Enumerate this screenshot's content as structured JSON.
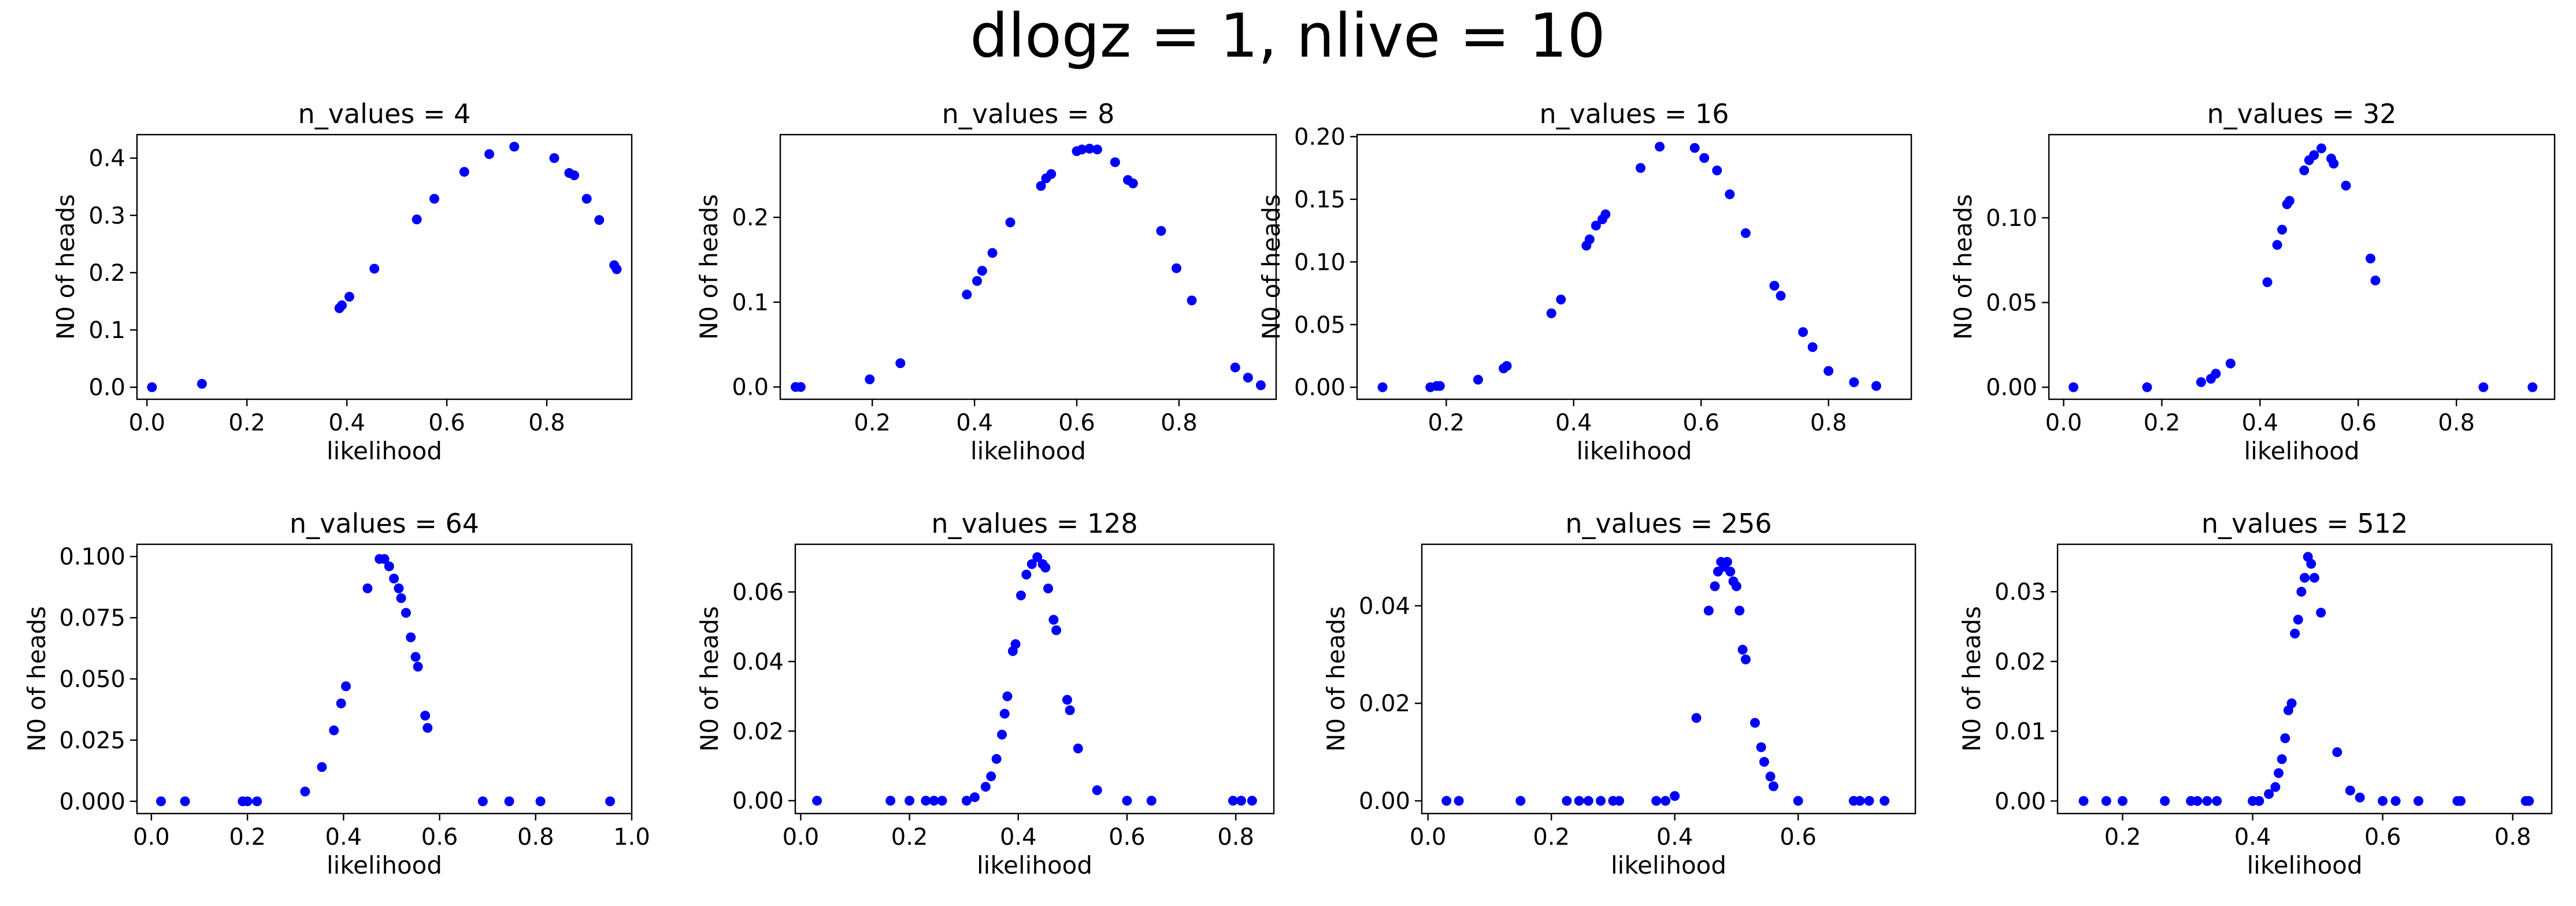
{
  "suptitle": "dlogz = 1, nlive = 10",
  "chart_data": [
    {
      "type": "scatter",
      "title": "n_values =  4",
      "xlabel": "likelihood",
      "ylabel": "N0 of heads",
      "xlim": [
        -0.02,
        0.97
      ],
      "ylim": [
        -0.021,
        0.441
      ],
      "xticks": [
        0.0,
        0.2,
        0.4,
        0.6,
        0.8
      ],
      "xtick_labels": [
        "0.0",
        "0.2",
        "0.4",
        "0.6",
        "0.8"
      ],
      "yticks": [
        0.0,
        0.1,
        0.2,
        0.3,
        0.4
      ],
      "ytick_labels": [
        "0.0",
        "0.1",
        "0.2",
        "0.3",
        "0.4"
      ],
      "marker_color": "#0000ff",
      "points": [
        [
          0.01,
          0.0
        ],
        [
          0.11,
          0.006
        ],
        [
          0.385,
          0.138
        ],
        [
          0.39,
          0.143
        ],
        [
          0.405,
          0.158
        ],
        [
          0.455,
          0.207
        ],
        [
          0.54,
          0.293
        ],
        [
          0.575,
          0.329
        ],
        [
          0.635,
          0.376
        ],
        [
          0.685,
          0.407
        ],
        [
          0.735,
          0.42
        ],
        [
          0.815,
          0.4
        ],
        [
          0.845,
          0.374
        ],
        [
          0.855,
          0.37
        ],
        [
          0.88,
          0.329
        ],
        [
          0.905,
          0.292
        ],
        [
          0.935,
          0.213
        ],
        [
          0.94,
          0.206
        ]
      ]
    },
    {
      "type": "scatter",
      "title": "n_values =  8",
      "xlabel": "likelihood",
      "ylabel": "N0 of heads",
      "xlim": [
        0.02,
        0.99
      ],
      "ylim": [
        -0.0145,
        0.2975
      ],
      "xticks": [
        0.2,
        0.4,
        0.6,
        0.8
      ],
      "xtick_labels": [
        "0.2",
        "0.4",
        "0.6",
        "0.8"
      ],
      "yticks": [
        0.0,
        0.1,
        0.2
      ],
      "ytick_labels": [
        "0.0",
        "0.1",
        "0.2"
      ],
      "marker_color": "#0000ff",
      "points": [
        [
          0.05,
          0.0
        ],
        [
          0.06,
          0.0
        ],
        [
          0.195,
          0.009
        ],
        [
          0.255,
          0.028
        ],
        [
          0.385,
          0.109
        ],
        [
          0.405,
          0.125
        ],
        [
          0.415,
          0.137
        ],
        [
          0.435,
          0.158
        ],
        [
          0.47,
          0.194
        ],
        [
          0.53,
          0.237
        ],
        [
          0.54,
          0.246
        ],
        [
          0.55,
          0.251
        ],
        [
          0.6,
          0.278
        ],
        [
          0.61,
          0.28
        ],
        [
          0.625,
          0.281
        ],
        [
          0.64,
          0.28
        ],
        [
          0.675,
          0.265
        ],
        [
          0.7,
          0.244
        ],
        [
          0.71,
          0.24
        ],
        [
          0.765,
          0.184
        ],
        [
          0.795,
          0.14
        ],
        [
          0.825,
          0.102
        ],
        [
          0.91,
          0.023
        ],
        [
          0.935,
          0.011
        ],
        [
          0.96,
          0.002
        ]
      ]
    },
    {
      "type": "scatter",
      "title": "n_values =  16",
      "xlabel": "likelihood",
      "ylabel": "N0 of heads",
      "xlim": [
        0.06,
        0.93
      ],
      "ylim": [
        -0.0096,
        0.2016
      ],
      "xticks": [
        0.2,
        0.4,
        0.6,
        0.8
      ],
      "xtick_labels": [
        "0.2",
        "0.4",
        "0.6",
        "0.8"
      ],
      "yticks": [
        0.0,
        0.05,
        0.1,
        0.15,
        0.2
      ],
      "ytick_labels": [
        "0.00",
        "0.05",
        "0.10",
        "0.15",
        "0.20"
      ],
      "marker_color": "#0000ff",
      "points": [
        [
          0.1,
          0.0
        ],
        [
          0.175,
          0.0
        ],
        [
          0.185,
          0.001
        ],
        [
          0.19,
          0.001
        ],
        [
          0.25,
          0.006
        ],
        [
          0.29,
          0.015
        ],
        [
          0.295,
          0.017
        ],
        [
          0.365,
          0.059
        ],
        [
          0.38,
          0.07
        ],
        [
          0.42,
          0.113
        ],
        [
          0.425,
          0.118
        ],
        [
          0.435,
          0.129
        ],
        [
          0.445,
          0.134
        ],
        [
          0.45,
          0.138
        ],
        [
          0.505,
          0.175
        ],
        [
          0.535,
          0.192
        ],
        [
          0.59,
          0.191
        ],
        [
          0.605,
          0.183
        ],
        [
          0.625,
          0.173
        ],
        [
          0.645,
          0.154
        ],
        [
          0.67,
          0.123
        ],
        [
          0.715,
          0.081
        ],
        [
          0.725,
          0.073
        ],
        [
          0.76,
          0.044
        ],
        [
          0.775,
          0.032
        ],
        [
          0.8,
          0.013
        ],
        [
          0.84,
          0.004
        ],
        [
          0.875,
          0.001
        ]
      ]
    },
    {
      "type": "scatter",
      "title": "n_values =  32",
      "xlabel": "likelihood",
      "ylabel": "N0 of heads",
      "xlim": [
        -0.03,
        1.0
      ],
      "ylim": [
        -0.0071,
        0.1491
      ],
      "xticks": [
        0.0,
        0.2,
        0.4,
        0.6,
        0.8
      ],
      "xtick_labels": [
        "0.0",
        "0.2",
        "0.4",
        "0.6",
        "0.8"
      ],
      "yticks": [
        0.0,
        0.05,
        0.1
      ],
      "ytick_labels": [
        "0.00",
        "0.05",
        "0.10"
      ],
      "marker_color": "#0000ff",
      "points": [
        [
          0.02,
          0.0
        ],
        [
          0.17,
          0.0
        ],
        [
          0.28,
          0.003
        ],
        [
          0.3,
          0.005
        ],
        [
          0.31,
          0.008
        ],
        [
          0.34,
          0.014
        ],
        [
          0.415,
          0.062
        ],
        [
          0.435,
          0.084
        ],
        [
          0.445,
          0.093
        ],
        [
          0.455,
          0.108
        ],
        [
          0.46,
          0.11
        ],
        [
          0.49,
          0.128
        ],
        [
          0.5,
          0.134
        ],
        [
          0.51,
          0.137
        ],
        [
          0.525,
          0.141
        ],
        [
          0.545,
          0.135
        ],
        [
          0.55,
          0.132
        ],
        [
          0.575,
          0.119
        ],
        [
          0.625,
          0.076
        ],
        [
          0.635,
          0.063
        ],
        [
          0.855,
          0.0
        ],
        [
          0.955,
          0.0
        ]
      ]
    },
    {
      "type": "scatter",
      "title": "n_values =  64",
      "xlabel": "likelihood",
      "ylabel": "N0 of heads",
      "xlim": [
        -0.03,
        1.0
      ],
      "ylim": [
        -0.005,
        0.105
      ],
      "xticks": [
        0.0,
        0.2,
        0.4,
        0.6,
        0.8,
        1.0
      ],
      "xtick_labels": [
        "0.0",
        "0.2",
        "0.4",
        "0.6",
        "0.8",
        "1.0"
      ],
      "yticks": [
        0.0,
        0.025,
        0.05,
        0.075,
        0.1
      ],
      "ytick_labels": [
        "0.000",
        "0.025",
        "0.050",
        "0.075",
        "0.100"
      ],
      "marker_color": "#0000ff",
      "points": [
        [
          0.02,
          0.0
        ],
        [
          0.07,
          0.0
        ],
        [
          0.19,
          0.0
        ],
        [
          0.2,
          0.0
        ],
        [
          0.22,
          0.0
        ],
        [
          0.32,
          0.004
        ],
        [
          0.355,
          0.014
        ],
        [
          0.38,
          0.029
        ],
        [
          0.395,
          0.04
        ],
        [
          0.405,
          0.047
        ],
        [
          0.45,
          0.087
        ],
        [
          0.475,
          0.099
        ],
        [
          0.485,
          0.099
        ],
        [
          0.495,
          0.096
        ],
        [
          0.505,
          0.091
        ],
        [
          0.515,
          0.087
        ],
        [
          0.52,
          0.083
        ],
        [
          0.53,
          0.077
        ],
        [
          0.54,
          0.067
        ],
        [
          0.55,
          0.059
        ],
        [
          0.555,
          0.055
        ],
        [
          0.57,
          0.035
        ],
        [
          0.575,
          0.03
        ],
        [
          0.69,
          0.0
        ],
        [
          0.745,
          0.0
        ],
        [
          0.81,
          0.0
        ],
        [
          0.955,
          0.0
        ]
      ]
    },
    {
      "type": "scatter",
      "title": "n_values =  128",
      "xlabel": "likelihood",
      "ylabel": "N0 of heads",
      "xlim": [
        -0.01,
        0.87
      ],
      "ylim": [
        -0.0037,
        0.0737
      ],
      "xticks": [
        0.0,
        0.2,
        0.4,
        0.6,
        0.8
      ],
      "xtick_labels": [
        "0.0",
        "0.2",
        "0.4",
        "0.6",
        "0.8"
      ],
      "yticks": [
        0.0,
        0.02,
        0.04,
        0.06
      ],
      "ytick_labels": [
        "0.00",
        "0.02",
        "0.04",
        "0.06"
      ],
      "marker_color": "#0000ff",
      "points": [
        [
          0.03,
          0.0
        ],
        [
          0.165,
          0.0
        ],
        [
          0.2,
          0.0
        ],
        [
          0.23,
          0.0
        ],
        [
          0.245,
          0.0
        ],
        [
          0.26,
          0.0
        ],
        [
          0.305,
          0.0
        ],
        [
          0.32,
          0.001
        ],
        [
          0.34,
          0.004
        ],
        [
          0.35,
          0.007
        ],
        [
          0.36,
          0.012
        ],
        [
          0.37,
          0.019
        ],
        [
          0.375,
          0.025
        ],
        [
          0.38,
          0.03
        ],
        [
          0.39,
          0.043
        ],
        [
          0.395,
          0.045
        ],
        [
          0.405,
          0.059
        ],
        [
          0.415,
          0.065
        ],
        [
          0.425,
          0.068
        ],
        [
          0.435,
          0.07
        ],
        [
          0.445,
          0.068
        ],
        [
          0.45,
          0.067
        ],
        [
          0.455,
          0.061
        ],
        [
          0.465,
          0.052
        ],
        [
          0.47,
          0.049
        ],
        [
          0.49,
          0.029
        ],
        [
          0.495,
          0.026
        ],
        [
          0.51,
          0.015
        ],
        [
          0.545,
          0.003
        ],
        [
          0.6,
          0.0
        ],
        [
          0.645,
          0.0
        ],
        [
          0.795,
          0.0
        ],
        [
          0.81,
          0.0
        ],
        [
          0.83,
          0.0
        ]
      ]
    },
    {
      "type": "scatter",
      "title": "n_values =  256",
      "xlabel": "likelihood",
      "ylabel": "N0 of heads",
      "xlim": [
        -0.01,
        0.79
      ],
      "ylim": [
        -0.0026,
        0.0526
      ],
      "xticks": [
        0.0,
        0.2,
        0.4,
        0.6
      ],
      "xtick_labels": [
        "0.0",
        "0.2",
        "0.4",
        "0.6"
      ],
      "yticks": [
        0.0,
        0.02,
        0.04
      ],
      "ytick_labels": [
        "0.00",
        "0.02",
        "0.04"
      ],
      "marker_color": "#0000ff",
      "points": [
        [
          0.03,
          0.0
        ],
        [
          0.05,
          0.0
        ],
        [
          0.15,
          0.0
        ],
        [
          0.225,
          0.0
        ],
        [
          0.245,
          0.0
        ],
        [
          0.26,
          0.0
        ],
        [
          0.28,
          0.0
        ],
        [
          0.3,
          0.0
        ],
        [
          0.31,
          0.0
        ],
        [
          0.37,
          0.0
        ],
        [
          0.385,
          0.0
        ],
        [
          0.4,
          0.001
        ],
        [
          0.435,
          0.017
        ],
        [
          0.455,
          0.039
        ],
        [
          0.465,
          0.044
        ],
        [
          0.47,
          0.047
        ],
        [
          0.475,
          0.049
        ],
        [
          0.48,
          0.048
        ],
        [
          0.485,
          0.049
        ],
        [
          0.49,
          0.047
        ],
        [
          0.495,
          0.045
        ],
        [
          0.5,
          0.044
        ],
        [
          0.505,
          0.039
        ],
        [
          0.51,
          0.031
        ],
        [
          0.515,
          0.029
        ],
        [
          0.53,
          0.016
        ],
        [
          0.54,
          0.011
        ],
        [
          0.545,
          0.008
        ],
        [
          0.555,
          0.005
        ],
        [
          0.56,
          0.003
        ],
        [
          0.6,
          0.0
        ],
        [
          0.69,
          0.0
        ],
        [
          0.7,
          0.0
        ],
        [
          0.715,
          0.0
        ],
        [
          0.74,
          0.0
        ]
      ]
    },
    {
      "type": "scatter",
      "title": "n_values =  512",
      "xlabel": "likelihood",
      "ylabel": "N0 of heads",
      "xlim": [
        0.1,
        0.86
      ],
      "ylim": [
        -0.0018,
        0.0368
      ],
      "xticks": [
        0.2,
        0.4,
        0.6,
        0.8
      ],
      "xtick_labels": [
        "0.2",
        "0.4",
        "0.6",
        "0.8"
      ],
      "yticks": [
        0.0,
        0.01,
        0.02,
        0.03
      ],
      "ytick_labels": [
        "0.00",
        "0.01",
        "0.02",
        "0.03"
      ],
      "marker_color": "#0000ff",
      "points": [
        [
          0.14,
          0.0
        ],
        [
          0.175,
          0.0
        ],
        [
          0.2,
          0.0
        ],
        [
          0.265,
          0.0
        ],
        [
          0.305,
          0.0
        ],
        [
          0.315,
          0.0
        ],
        [
          0.33,
          0.0
        ],
        [
          0.345,
          0.0
        ],
        [
          0.4,
          0.0
        ],
        [
          0.41,
          0.0
        ],
        [
          0.425,
          0.001
        ],
        [
          0.435,
          0.002
        ],
        [
          0.44,
          0.004
        ],
        [
          0.445,
          0.006
        ],
        [
          0.45,
          0.009
        ],
        [
          0.455,
          0.013
        ],
        [
          0.46,
          0.014
        ],
        [
          0.465,
          0.024
        ],
        [
          0.47,
          0.026
        ],
        [
          0.475,
          0.03
        ],
        [
          0.48,
          0.032
        ],
        [
          0.485,
          0.035
        ],
        [
          0.49,
          0.034
        ],
        [
          0.495,
          0.032
        ],
        [
          0.505,
          0.027
        ],
        [
          0.53,
          0.007
        ],
        [
          0.55,
          0.0015
        ],
        [
          0.565,
          0.0005
        ],
        [
          0.6,
          0.0
        ],
        [
          0.62,
          0.0
        ],
        [
          0.655,
          0.0
        ],
        [
          0.715,
          0.0
        ],
        [
          0.72,
          0.0
        ],
        [
          0.82,
          0.0
        ],
        [
          0.825,
          0.0
        ]
      ]
    }
  ]
}
